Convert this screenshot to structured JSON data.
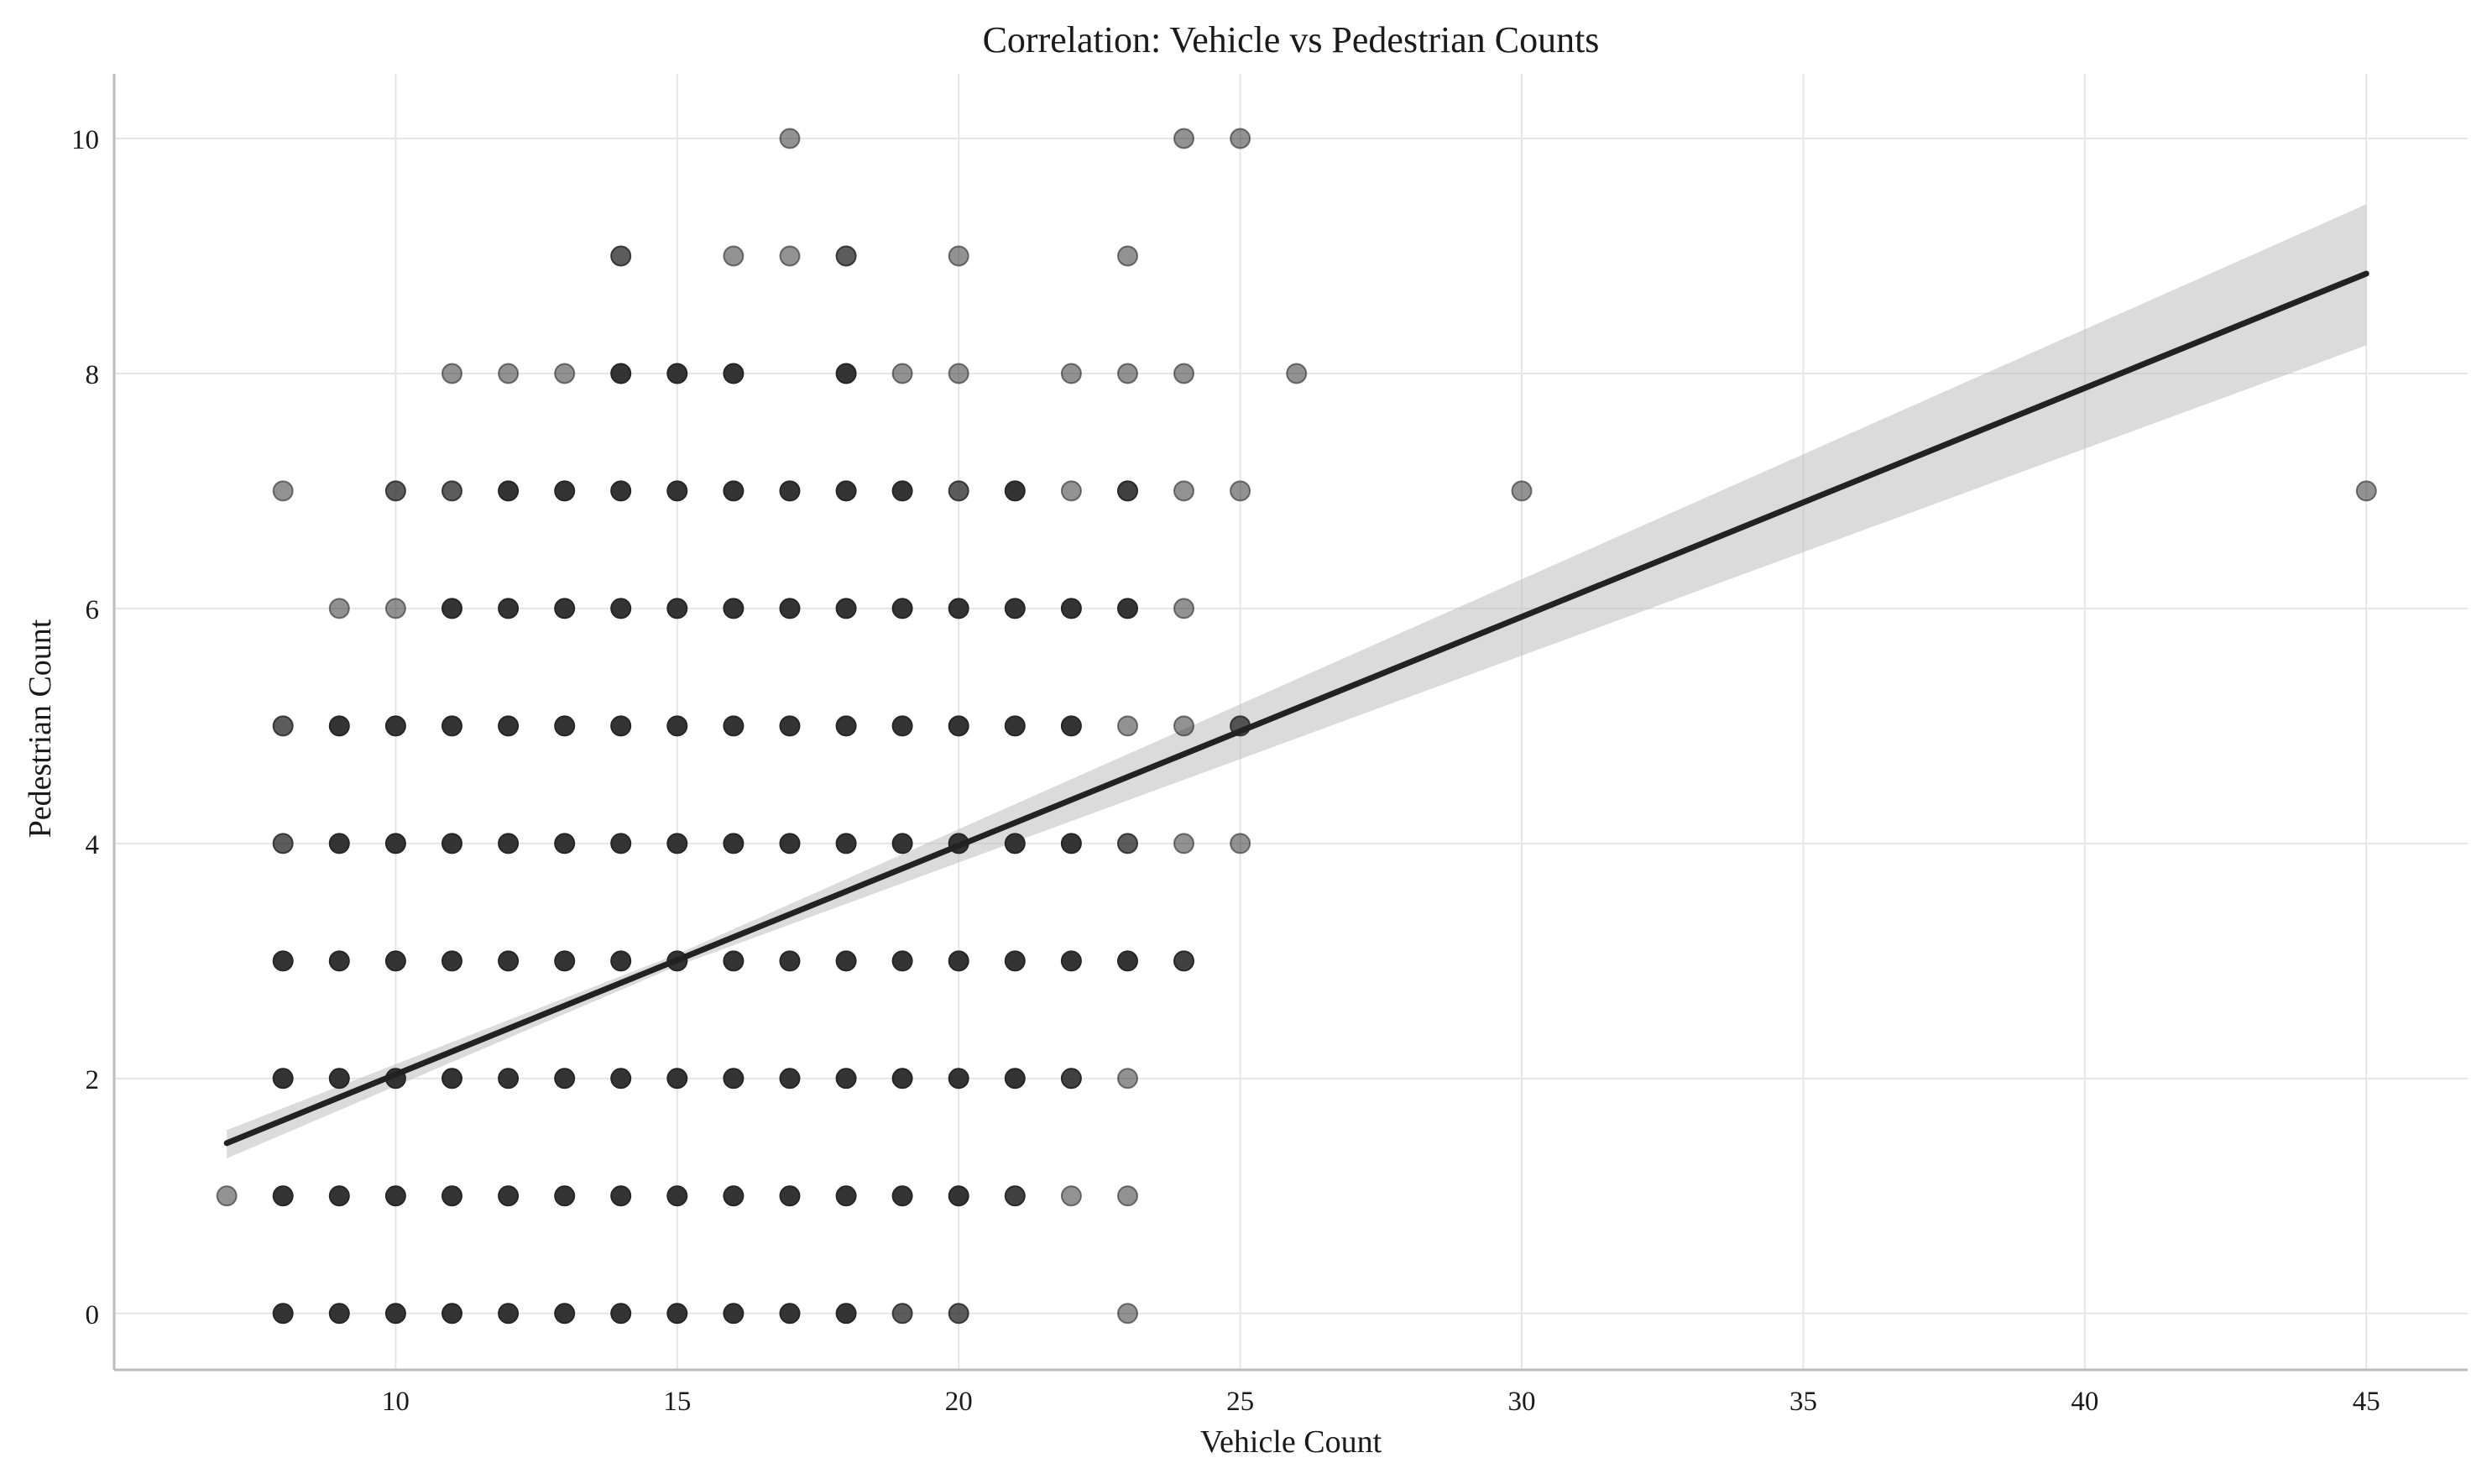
{
  "chart_data": {
    "type": "scatter",
    "title": "Correlation: Vehicle vs Pedestrian Counts",
    "xlabel": "Vehicle Count",
    "ylabel": "Pedestrian Count",
    "xlim": [
      5,
      46.8
    ],
    "ylim": [
      -0.48,
      10.55
    ],
    "xticks": [
      10,
      15,
      20,
      25,
      30,
      35,
      40,
      45
    ],
    "yticks": [
      0,
      2,
      4,
      6,
      8,
      10
    ],
    "grid": true,
    "colors": {
      "point": "#262626",
      "fit_line": "#222222",
      "confidence_band": "#bdbdbd",
      "grid": "#e6e6e6",
      "spine": "#bdbdbd"
    },
    "points": [
      {
        "x": 7,
        "y": 1,
        "n": 1
      },
      {
        "x": 8,
        "y": 0,
        "n": 4
      },
      {
        "x": 8,
        "y": 1,
        "n": 4
      },
      {
        "x": 8,
        "y": 2,
        "n": 4
      },
      {
        "x": 8,
        "y": 3,
        "n": 4
      },
      {
        "x": 8,
        "y": 4,
        "n": 2
      },
      {
        "x": 8,
        "y": 5,
        "n": 2
      },
      {
        "x": 8,
        "y": 7,
        "n": 1
      },
      {
        "x": 9,
        "y": 0,
        "n": 4
      },
      {
        "x": 9,
        "y": 1,
        "n": 4
      },
      {
        "x": 9,
        "y": 2,
        "n": 4
      },
      {
        "x": 9,
        "y": 3,
        "n": 4
      },
      {
        "x": 9,
        "y": 4,
        "n": 4
      },
      {
        "x": 9,
        "y": 5,
        "n": 4
      },
      {
        "x": 9,
        "y": 6,
        "n": 1
      },
      {
        "x": 10,
        "y": 0,
        "n": 4
      },
      {
        "x": 10,
        "y": 1,
        "n": 4
      },
      {
        "x": 10,
        "y": 2,
        "n": 4
      },
      {
        "x": 10,
        "y": 3,
        "n": 4
      },
      {
        "x": 10,
        "y": 4,
        "n": 4
      },
      {
        "x": 10,
        "y": 5,
        "n": 4
      },
      {
        "x": 10,
        "y": 6,
        "n": 1
      },
      {
        "x": 10,
        "y": 7,
        "n": 2
      },
      {
        "x": 11,
        "y": 0,
        "n": 4
      },
      {
        "x": 11,
        "y": 1,
        "n": 4
      },
      {
        "x": 11,
        "y": 2,
        "n": 4
      },
      {
        "x": 11,
        "y": 3,
        "n": 4
      },
      {
        "x": 11,
        "y": 4,
        "n": 4
      },
      {
        "x": 11,
        "y": 5,
        "n": 4
      },
      {
        "x": 11,
        "y": 6,
        "n": 4
      },
      {
        "x": 11,
        "y": 7,
        "n": 2
      },
      {
        "x": 11,
        "y": 8,
        "n": 1
      },
      {
        "x": 12,
        "y": 0,
        "n": 4
      },
      {
        "x": 12,
        "y": 1,
        "n": 4
      },
      {
        "x": 12,
        "y": 2,
        "n": 4
      },
      {
        "x": 12,
        "y": 3,
        "n": 4
      },
      {
        "x": 12,
        "y": 4,
        "n": 4
      },
      {
        "x": 12,
        "y": 5,
        "n": 4
      },
      {
        "x": 12,
        "y": 6,
        "n": 4
      },
      {
        "x": 12,
        "y": 7,
        "n": 4
      },
      {
        "x": 12,
        "y": 8,
        "n": 1
      },
      {
        "x": 13,
        "y": 0,
        "n": 4
      },
      {
        "x": 13,
        "y": 1,
        "n": 4
      },
      {
        "x": 13,
        "y": 2,
        "n": 4
      },
      {
        "x": 13,
        "y": 3,
        "n": 4
      },
      {
        "x": 13,
        "y": 4,
        "n": 4
      },
      {
        "x": 13,
        "y": 5,
        "n": 4
      },
      {
        "x": 13,
        "y": 6,
        "n": 4
      },
      {
        "x": 13,
        "y": 7,
        "n": 4
      },
      {
        "x": 13,
        "y": 8,
        "n": 1
      },
      {
        "x": 14,
        "y": 0,
        "n": 4
      },
      {
        "x": 14,
        "y": 1,
        "n": 4
      },
      {
        "x": 14,
        "y": 2,
        "n": 4
      },
      {
        "x": 14,
        "y": 3,
        "n": 4
      },
      {
        "x": 14,
        "y": 4,
        "n": 4
      },
      {
        "x": 14,
        "y": 5,
        "n": 4
      },
      {
        "x": 14,
        "y": 6,
        "n": 4
      },
      {
        "x": 14,
        "y": 7,
        "n": 4
      },
      {
        "x": 14,
        "y": 8,
        "n": 4
      },
      {
        "x": 14,
        "y": 9,
        "n": 2
      },
      {
        "x": 15,
        "y": 0,
        "n": 4
      },
      {
        "x": 15,
        "y": 1,
        "n": 4
      },
      {
        "x": 15,
        "y": 2,
        "n": 4
      },
      {
        "x": 15,
        "y": 3,
        "n": 4
      },
      {
        "x": 15,
        "y": 4,
        "n": 4
      },
      {
        "x": 15,
        "y": 5,
        "n": 4
      },
      {
        "x": 15,
        "y": 6,
        "n": 4
      },
      {
        "x": 15,
        "y": 7,
        "n": 4
      },
      {
        "x": 15,
        "y": 8,
        "n": 4
      },
      {
        "x": 16,
        "y": 0,
        "n": 4
      },
      {
        "x": 16,
        "y": 1,
        "n": 4
      },
      {
        "x": 16,
        "y": 2,
        "n": 4
      },
      {
        "x": 16,
        "y": 3,
        "n": 4
      },
      {
        "x": 16,
        "y": 4,
        "n": 4
      },
      {
        "x": 16,
        "y": 5,
        "n": 4
      },
      {
        "x": 16,
        "y": 6,
        "n": 4
      },
      {
        "x": 16,
        "y": 7,
        "n": 4
      },
      {
        "x": 16,
        "y": 8,
        "n": 4
      },
      {
        "x": 16,
        "y": 9,
        "n": 1
      },
      {
        "x": 17,
        "y": 0,
        "n": 4
      },
      {
        "x": 17,
        "y": 1,
        "n": 4
      },
      {
        "x": 17,
        "y": 2,
        "n": 4
      },
      {
        "x": 17,
        "y": 3,
        "n": 4
      },
      {
        "x": 17,
        "y": 4,
        "n": 4
      },
      {
        "x": 17,
        "y": 5,
        "n": 4
      },
      {
        "x": 17,
        "y": 6,
        "n": 4
      },
      {
        "x": 17,
        "y": 7,
        "n": 4
      },
      {
        "x": 17,
        "y": 9,
        "n": 1
      },
      {
        "x": 17,
        "y": 10,
        "n": 1
      },
      {
        "x": 18,
        "y": 0,
        "n": 4
      },
      {
        "x": 18,
        "y": 1,
        "n": 4
      },
      {
        "x": 18,
        "y": 2,
        "n": 4
      },
      {
        "x": 18,
        "y": 3,
        "n": 4
      },
      {
        "x": 18,
        "y": 4,
        "n": 4
      },
      {
        "x": 18,
        "y": 5,
        "n": 4
      },
      {
        "x": 18,
        "y": 6,
        "n": 4
      },
      {
        "x": 18,
        "y": 7,
        "n": 4
      },
      {
        "x": 18,
        "y": 8,
        "n": 4
      },
      {
        "x": 18,
        "y": 9,
        "n": 2
      },
      {
        "x": 19,
        "y": 0,
        "n": 2
      },
      {
        "x": 19,
        "y": 1,
        "n": 4
      },
      {
        "x": 19,
        "y": 2,
        "n": 4
      },
      {
        "x": 19,
        "y": 3,
        "n": 4
      },
      {
        "x": 19,
        "y": 4,
        "n": 4
      },
      {
        "x": 19,
        "y": 5,
        "n": 4
      },
      {
        "x": 19,
        "y": 6,
        "n": 4
      },
      {
        "x": 19,
        "y": 7,
        "n": 4
      },
      {
        "x": 19,
        "y": 8,
        "n": 1
      },
      {
        "x": 20,
        "y": 0,
        "n": 2
      },
      {
        "x": 20,
        "y": 1,
        "n": 4
      },
      {
        "x": 20,
        "y": 2,
        "n": 4
      },
      {
        "x": 20,
        "y": 3,
        "n": 4
      },
      {
        "x": 20,
        "y": 4,
        "n": 4
      },
      {
        "x": 20,
        "y": 5,
        "n": 4
      },
      {
        "x": 20,
        "y": 6,
        "n": 4
      },
      {
        "x": 20,
        "y": 7,
        "n": 2
      },
      {
        "x": 20,
        "y": 8,
        "n": 1
      },
      {
        "x": 20,
        "y": 9,
        "n": 1
      },
      {
        "x": 21,
        "y": 1,
        "n": 3
      },
      {
        "x": 21,
        "y": 2,
        "n": 4
      },
      {
        "x": 21,
        "y": 3,
        "n": 4
      },
      {
        "x": 21,
        "y": 4,
        "n": 4
      },
      {
        "x": 21,
        "y": 5,
        "n": 4
      },
      {
        "x": 21,
        "y": 6,
        "n": 4
      },
      {
        "x": 21,
        "y": 7,
        "n": 4
      },
      {
        "x": 22,
        "y": 1,
        "n": 1
      },
      {
        "x": 22,
        "y": 2,
        "n": 3
      },
      {
        "x": 22,
        "y": 3,
        "n": 4
      },
      {
        "x": 22,
        "y": 4,
        "n": 4
      },
      {
        "x": 22,
        "y": 5,
        "n": 4
      },
      {
        "x": 22,
        "y": 6,
        "n": 4
      },
      {
        "x": 22,
        "y": 7,
        "n": 1
      },
      {
        "x": 22,
        "y": 8,
        "n": 1
      },
      {
        "x": 23,
        "y": 0,
        "n": 1
      },
      {
        "x": 23,
        "y": 1,
        "n": 1
      },
      {
        "x": 23,
        "y": 2,
        "n": 1
      },
      {
        "x": 23,
        "y": 3,
        "n": 4
      },
      {
        "x": 23,
        "y": 4,
        "n": 2
      },
      {
        "x": 23,
        "y": 5,
        "n": 1
      },
      {
        "x": 23,
        "y": 6,
        "n": 4
      },
      {
        "x": 23,
        "y": 7,
        "n": 3
      },
      {
        "x": 23,
        "y": 8,
        "n": 1
      },
      {
        "x": 23,
        "y": 9,
        "n": 1
      },
      {
        "x": 24,
        "y": 3,
        "n": 3
      },
      {
        "x": 24,
        "y": 4,
        "n": 1
      },
      {
        "x": 24,
        "y": 5,
        "n": 1
      },
      {
        "x": 24,
        "y": 6,
        "n": 1
      },
      {
        "x": 24,
        "y": 7,
        "n": 1
      },
      {
        "x": 24,
        "y": 8,
        "n": 1
      },
      {
        "x": 24,
        "y": 10,
        "n": 1
      },
      {
        "x": 25,
        "y": 4,
        "n": 1
      },
      {
        "x": 25,
        "y": 5,
        "n": 2
      },
      {
        "x": 25,
        "y": 7,
        "n": 1
      },
      {
        "x": 25,
        "y": 10,
        "n": 1
      },
      {
        "x": 26,
        "y": 8,
        "n": 1
      },
      {
        "x": 30,
        "y": 7,
        "n": 1
      },
      {
        "x": 45,
        "y": 7,
        "n": 1
      }
    ],
    "regression": {
      "x_range": [
        7,
        45
      ],
      "y_range": [
        1.45,
        8.85
      ],
      "ci_lower": [
        1.32,
        8.24
      ],
      "ci_upper": [
        1.56,
        9.44
      ],
      "ci_mid_x": 15,
      "ci_mid_halfwidth": 0.05
    }
  }
}
